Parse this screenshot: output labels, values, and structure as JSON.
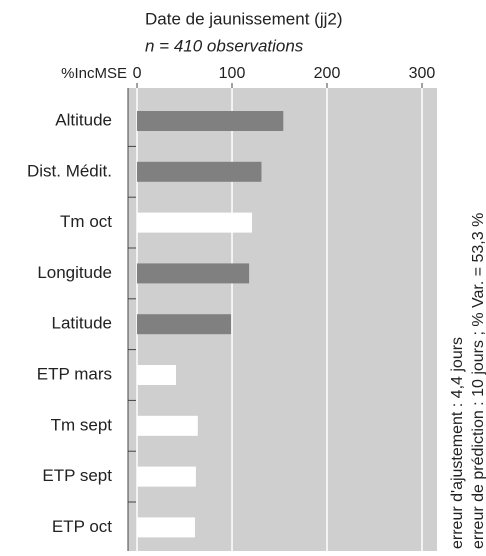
{
  "chart_data": {
    "type": "bar",
    "orientation": "horizontal",
    "title": "Date de jaunissement (jj2)",
    "subtitle": "n = 410 observations",
    "xlabel": "%IncMSE",
    "categories": [
      "Altitude",
      "Dist. Médit.",
      "Tm oct",
      "Longitude",
      "Latitude",
      "ETP mars",
      "Tm sept",
      "ETP sept",
      "ETP oct"
    ],
    "values": [
      154,
      131,
      121,
      118,
      99,
      41,
      64,
      62,
      61
    ],
    "colors": [
      "#808080",
      "#808080",
      "#ffffff",
      "#808080",
      "#808080",
      "#ffffff",
      "#ffffff",
      "#ffffff",
      "#ffffff"
    ],
    "xlim": [
      -9.5,
      315.8
    ],
    "xticks": [
      0,
      100,
      200,
      300
    ],
    "grid": true,
    "annotations": [
      "erreur d'ajustement : 4,4 jours",
      "erreur de prédiction : 10 jours ; % Var. = 53,3 %"
    ]
  }
}
